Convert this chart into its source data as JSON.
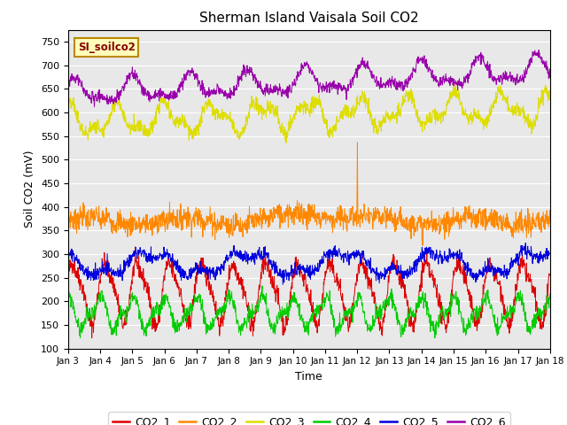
{
  "title": "Sherman Island Vaisala Soil CO2",
  "xlabel": "Time",
  "ylabel": "Soil CO2 (mV)",
  "ylim": [
    100,
    775
  ],
  "yticks": [
    100,
    150,
    200,
    250,
    300,
    350,
    400,
    450,
    500,
    550,
    600,
    650,
    700,
    750
  ],
  "date_labels": [
    "Jan 3",
    "Jan 4",
    "Jan 5",
    "Jan 6",
    "Jan 7",
    "Jan 8",
    "Jan 9",
    "Jan 10",
    "Jan 11",
    "Jan 12",
    "Jan 13",
    "Jan 14",
    "Jan 15",
    "Jan 16",
    "Jan 17",
    "Jan 18"
  ],
  "series_colors": {
    "CO2_1": "#dd0000",
    "CO2_2": "#ff8800",
    "CO2_3": "#dddd00",
    "CO2_4": "#00cc00",
    "CO2_5": "#0000dd",
    "CO2_6": "#9900aa"
  },
  "annotation_text": "SI_soilco2",
  "annotation_color": "#880000",
  "annotation_bg": "#ffffbb",
  "annotation_border": "#bb8800",
  "background_color": "#e8e8e8",
  "n_points": 1500,
  "figwidth": 6.4,
  "figheight": 4.8,
  "dpi": 100
}
